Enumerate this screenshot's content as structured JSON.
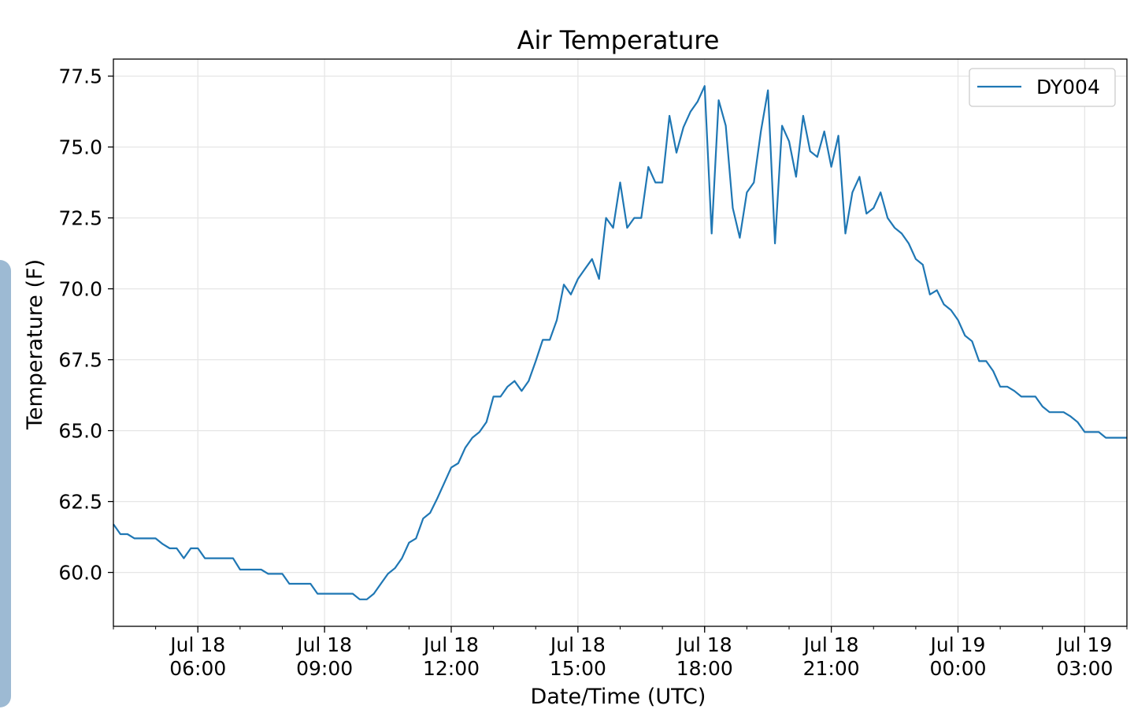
{
  "chart_data": {
    "type": "line",
    "title": "Air Temperature",
    "xlabel": "Date/Time (UTC)",
    "ylabel": "Temperature (F)",
    "grid": true,
    "legend_position": "top-right",
    "xlim": [
      "2018-07-18T04:00",
      "2018-07-19T04:00"
    ],
    "ylim": [
      58.1,
      78.1
    ],
    "yticks": [
      60.0,
      62.5,
      65.0,
      67.5,
      70.0,
      72.5,
      75.0,
      77.5
    ],
    "ytick_labels": [
      "60.0",
      "62.5",
      "65.0",
      "67.5",
      "70.0",
      "72.5",
      "75.0",
      "77.5"
    ],
    "xticks": [
      "2018-07-18T06:00",
      "2018-07-18T09:00",
      "2018-07-18T12:00",
      "2018-07-18T15:00",
      "2018-07-18T18:00",
      "2018-07-18T21:00",
      "2018-07-19T00:00",
      "2018-07-19T03:00"
    ],
    "xtick_labels": [
      [
        "Jul 18",
        "06:00"
      ],
      [
        "Jul 18",
        "09:00"
      ],
      [
        "Jul 18",
        "12:00"
      ],
      [
        "Jul 18",
        "15:00"
      ],
      [
        "Jul 18",
        "18:00"
      ],
      [
        "Jul 18",
        "21:00"
      ],
      [
        "Jul 19",
        "00:00"
      ],
      [
        "Jul 19",
        "03:00"
      ]
    ],
    "series": [
      {
        "name": "DY004",
        "color": "#1f77b4",
        "points": [
          [
            "2018-07-18T04:00",
            61.7
          ],
          [
            "2018-07-18T04:10",
            61.35
          ],
          [
            "2018-07-18T04:20",
            61.35
          ],
          [
            "2018-07-18T04:30",
            61.2
          ],
          [
            "2018-07-18T04:40",
            61.2
          ],
          [
            "2018-07-18T04:50",
            61.2
          ],
          [
            "2018-07-18T05:00",
            61.2
          ],
          [
            "2018-07-18T05:10",
            61.0
          ],
          [
            "2018-07-18T05:20",
            60.85
          ],
          [
            "2018-07-18T05:30",
            60.85
          ],
          [
            "2018-07-18T05:40",
            60.5
          ],
          [
            "2018-07-18T05:50",
            60.85
          ],
          [
            "2018-07-18T06:00",
            60.85
          ],
          [
            "2018-07-18T06:10",
            60.5
          ],
          [
            "2018-07-18T06:20",
            60.5
          ],
          [
            "2018-07-18T06:30",
            60.5
          ],
          [
            "2018-07-18T06:40",
            60.5
          ],
          [
            "2018-07-18T06:50",
            60.5
          ],
          [
            "2018-07-18T07:00",
            60.1
          ],
          [
            "2018-07-18T07:10",
            60.1
          ],
          [
            "2018-07-18T07:20",
            60.1
          ],
          [
            "2018-07-18T07:30",
            60.1
          ],
          [
            "2018-07-18T07:40",
            59.95
          ],
          [
            "2018-07-18T07:50",
            59.95
          ],
          [
            "2018-07-18T08:00",
            59.95
          ],
          [
            "2018-07-18T08:10",
            59.6
          ],
          [
            "2018-07-18T08:20",
            59.6
          ],
          [
            "2018-07-18T08:30",
            59.6
          ],
          [
            "2018-07-18T08:40",
            59.6
          ],
          [
            "2018-07-18T08:50",
            59.25
          ],
          [
            "2018-07-18T09:00",
            59.25
          ],
          [
            "2018-07-18T09:10",
            59.25
          ],
          [
            "2018-07-18T09:20",
            59.25
          ],
          [
            "2018-07-18T09:30",
            59.25
          ],
          [
            "2018-07-18T09:40",
            59.25
          ],
          [
            "2018-07-18T09:50",
            59.05
          ],
          [
            "2018-07-18T10:00",
            59.05
          ],
          [
            "2018-07-18T10:10",
            59.25
          ],
          [
            "2018-07-18T10:20",
            59.6
          ],
          [
            "2018-07-18T10:30",
            59.95
          ],
          [
            "2018-07-18T10:40",
            60.15
          ],
          [
            "2018-07-18T10:50",
            60.5
          ],
          [
            "2018-07-18T11:00",
            61.05
          ],
          [
            "2018-07-18T11:10",
            61.2
          ],
          [
            "2018-07-18T11:20",
            61.9
          ],
          [
            "2018-07-18T11:30",
            62.1
          ],
          [
            "2018-07-18T11:40",
            62.6
          ],
          [
            "2018-07-18T11:50",
            63.15
          ],
          [
            "2018-07-18T12:00",
            63.7
          ],
          [
            "2018-07-18T12:10",
            63.85
          ],
          [
            "2018-07-18T12:20",
            64.4
          ],
          [
            "2018-07-18T12:30",
            64.75
          ],
          [
            "2018-07-18T12:40",
            64.95
          ],
          [
            "2018-07-18T12:50",
            65.3
          ],
          [
            "2018-07-18T13:00",
            66.2
          ],
          [
            "2018-07-18T13:10",
            66.2
          ],
          [
            "2018-07-18T13:20",
            66.55
          ],
          [
            "2018-07-18T13:30",
            66.75
          ],
          [
            "2018-07-18T13:40",
            66.4
          ],
          [
            "2018-07-18T13:50",
            66.75
          ],
          [
            "2018-07-18T14:00",
            67.45
          ],
          [
            "2018-07-18T14:10",
            68.2
          ],
          [
            "2018-07-18T14:20",
            68.2
          ],
          [
            "2018-07-18T14:30",
            68.9
          ],
          [
            "2018-07-18T14:40",
            70.15
          ],
          [
            "2018-07-18T14:50",
            69.8
          ],
          [
            "2018-07-18T15:00",
            70.35
          ],
          [
            "2018-07-18T15:10",
            70.7
          ],
          [
            "2018-07-18T15:20",
            71.05
          ],
          [
            "2018-07-18T15:30",
            70.35
          ],
          [
            "2018-07-18T15:40",
            72.5
          ],
          [
            "2018-07-18T15:50",
            72.15
          ],
          [
            "2018-07-18T16:00",
            73.75
          ],
          [
            "2018-07-18T16:10",
            72.15
          ],
          [
            "2018-07-18T16:20",
            72.5
          ],
          [
            "2018-07-18T16:30",
            72.5
          ],
          [
            "2018-07-18T16:40",
            74.3
          ],
          [
            "2018-07-18T16:50",
            73.75
          ],
          [
            "2018-07-18T17:00",
            73.75
          ],
          [
            "2018-07-18T17:10",
            76.1
          ],
          [
            "2018-07-18T17:20",
            74.8
          ],
          [
            "2018-07-18T17:30",
            75.7
          ],
          [
            "2018-07-18T17:40",
            76.25
          ],
          [
            "2018-07-18T17:50",
            76.6
          ],
          [
            "2018-07-18T18:00",
            77.15
          ],
          [
            "2018-07-18T18:10",
            71.95
          ],
          [
            "2018-07-18T18:20",
            76.65
          ],
          [
            "2018-07-18T18:30",
            75.75
          ],
          [
            "2018-07-18T18:40",
            72.85
          ],
          [
            "2018-07-18T18:50",
            71.8
          ],
          [
            "2018-07-18T19:00",
            73.4
          ],
          [
            "2018-07-18T19:10",
            73.75
          ],
          [
            "2018-07-18T19:20",
            75.55
          ],
          [
            "2018-07-18T19:30",
            77.0
          ],
          [
            "2018-07-18T19:40",
            71.6
          ],
          [
            "2018-07-18T19:50",
            75.75
          ],
          [
            "2018-07-18T20:00",
            75.2
          ],
          [
            "2018-07-18T20:10",
            73.95
          ],
          [
            "2018-07-18T20:20",
            76.1
          ],
          [
            "2018-07-18T20:30",
            74.85
          ],
          [
            "2018-07-18T20:40",
            74.65
          ],
          [
            "2018-07-18T20:50",
            75.55
          ],
          [
            "2018-07-18T21:00",
            74.3
          ],
          [
            "2018-07-18T21:10",
            75.4
          ],
          [
            "2018-07-18T21:20",
            71.95
          ],
          [
            "2018-07-18T21:30",
            73.4
          ],
          [
            "2018-07-18T21:40",
            73.95
          ],
          [
            "2018-07-18T21:50",
            72.65
          ],
          [
            "2018-07-18T22:00",
            72.85
          ],
          [
            "2018-07-18T22:10",
            73.4
          ],
          [
            "2018-07-18T22:20",
            72.5
          ],
          [
            "2018-07-18T22:30",
            72.15
          ],
          [
            "2018-07-18T22:40",
            71.95
          ],
          [
            "2018-07-18T22:50",
            71.6
          ],
          [
            "2018-07-18T23:00",
            71.05
          ],
          [
            "2018-07-18T23:10",
            70.85
          ],
          [
            "2018-07-18T23:20",
            69.8
          ],
          [
            "2018-07-18T23:30",
            69.95
          ],
          [
            "2018-07-18T23:40",
            69.45
          ],
          [
            "2018-07-18T23:50",
            69.25
          ],
          [
            "2018-07-19T00:00",
            68.9
          ],
          [
            "2018-07-19T00:10",
            68.35
          ],
          [
            "2018-07-19T00:20",
            68.15
          ],
          [
            "2018-07-19T00:30",
            67.45
          ],
          [
            "2018-07-19T00:40",
            67.45
          ],
          [
            "2018-07-19T00:50",
            67.1
          ],
          [
            "2018-07-19T01:00",
            66.55
          ],
          [
            "2018-07-19T01:10",
            66.55
          ],
          [
            "2018-07-19T01:20",
            66.4
          ],
          [
            "2018-07-19T01:30",
            66.2
          ],
          [
            "2018-07-19T01:40",
            66.2
          ],
          [
            "2018-07-19T01:50",
            66.2
          ],
          [
            "2018-07-19T02:00",
            65.85
          ],
          [
            "2018-07-19T02:10",
            65.65
          ],
          [
            "2018-07-19T02:20",
            65.65
          ],
          [
            "2018-07-19T02:30",
            65.65
          ],
          [
            "2018-07-19T02:40",
            65.5
          ],
          [
            "2018-07-19T02:50",
            65.3
          ],
          [
            "2018-07-19T03:00",
            64.95
          ],
          [
            "2018-07-19T03:10",
            64.95
          ],
          [
            "2018-07-19T03:20",
            64.95
          ],
          [
            "2018-07-19T03:30",
            64.75
          ],
          [
            "2018-07-19T03:40",
            64.75
          ],
          [
            "2018-07-19T03:50",
            64.75
          ],
          [
            "2018-07-19T04:00",
            64.75
          ]
        ]
      }
    ]
  }
}
